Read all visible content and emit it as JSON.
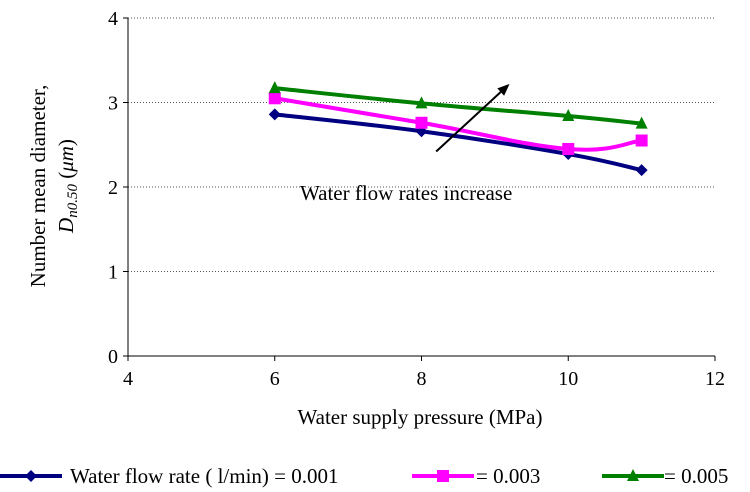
{
  "chart_data": {
    "type": "line",
    "title": "",
    "xlabel": "Water supply pressure (MPa)",
    "ylabel": {
      "line1": "Number mean diameter,",
      "symbol": "D",
      "subscript": "n0.50",
      "unit_open": " (",
      "unit": "μm",
      "unit_close": ")"
    },
    "xlim": [
      4,
      12
    ],
    "ylim": [
      0,
      4
    ],
    "x_ticks": [
      4,
      6,
      8,
      10,
      12
    ],
    "y_ticks": [
      0,
      1,
      2,
      3,
      4
    ],
    "grid": {
      "y_major": true,
      "style": "dotted"
    },
    "legend_position": "bottom",
    "annotation": {
      "text": "Water flow rates increase",
      "arrow_from": [
        8.2,
        2.42
      ],
      "arrow_to": [
        9.2,
        3.22
      ]
    },
    "series": [
      {
        "name": "Water flow rate ( l/min) = 0.001",
        "color": "#000080",
        "marker": "diamond",
        "x": [
          6,
          8,
          10,
          11
        ],
        "y": [
          2.86,
          2.66,
          2.39,
          2.2
        ]
      },
      {
        "name": "= 0.003",
        "color": "#ff00ff",
        "marker": "square",
        "x": [
          6,
          8,
          10,
          11
        ],
        "y": [
          3.05,
          2.76,
          2.45,
          2.55
        ]
      },
      {
        "name": "= 0.005",
        "color": "#008000",
        "marker": "triangle",
        "x": [
          6,
          8,
          10,
          11
        ],
        "y": [
          3.17,
          2.99,
          2.84,
          2.75
        ]
      }
    ]
  }
}
